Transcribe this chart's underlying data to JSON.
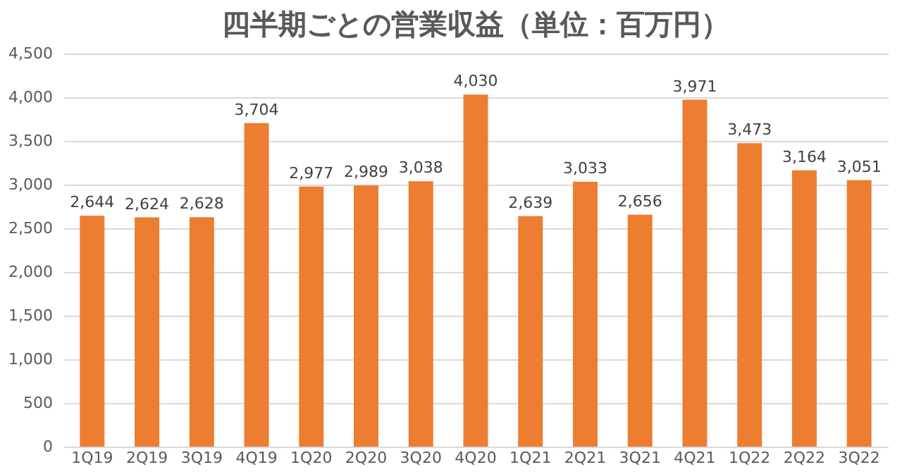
{
  "chart_data": {
    "type": "bar",
    "title": "四半期ごとの営業収益（単位：百万円）",
    "categories": [
      "1Q19",
      "2Q19",
      "3Q19",
      "4Q19",
      "1Q20",
      "2Q20",
      "3Q20",
      "4Q20",
      "1Q21",
      "2Q21",
      "3Q21",
      "4Q21",
      "1Q22",
      "2Q22",
      "3Q22"
    ],
    "values": [
      2644,
      2624,
      2628,
      3704,
      2977,
      2989,
      3038,
      4030,
      2639,
      3033,
      2656,
      3971,
      3473,
      3164,
      3051
    ],
    "value_labels": [
      "2,644",
      "2,624",
      "2,628",
      "3,704",
      "2,977",
      "2,989",
      "3,038",
      "4,030",
      "2,639",
      "3,033",
      "2,656",
      "3,971",
      "3,473",
      "3,164",
      "3,051"
    ],
    "color": "#ed7d31",
    "ylim": [
      0,
      4500
    ],
    "yticks": [
      0,
      500,
      {
        "value": 1000,
        "label": "1,000"
      },
      {
        "value": 1500,
        "label": "1,500"
      },
      {
        "value": 2000,
        "label": "2,000"
      },
      {
        "value": 2500,
        "label": "2,500"
      },
      {
        "value": 3000,
        "label": "3,000"
      },
      {
        "value": 3500,
        "label": "3,500"
      },
      {
        "value": 4000,
        "label": "4,000"
      },
      {
        "value": 4500,
        "label": "4,500"
      }
    ],
    "grid": "y"
  }
}
